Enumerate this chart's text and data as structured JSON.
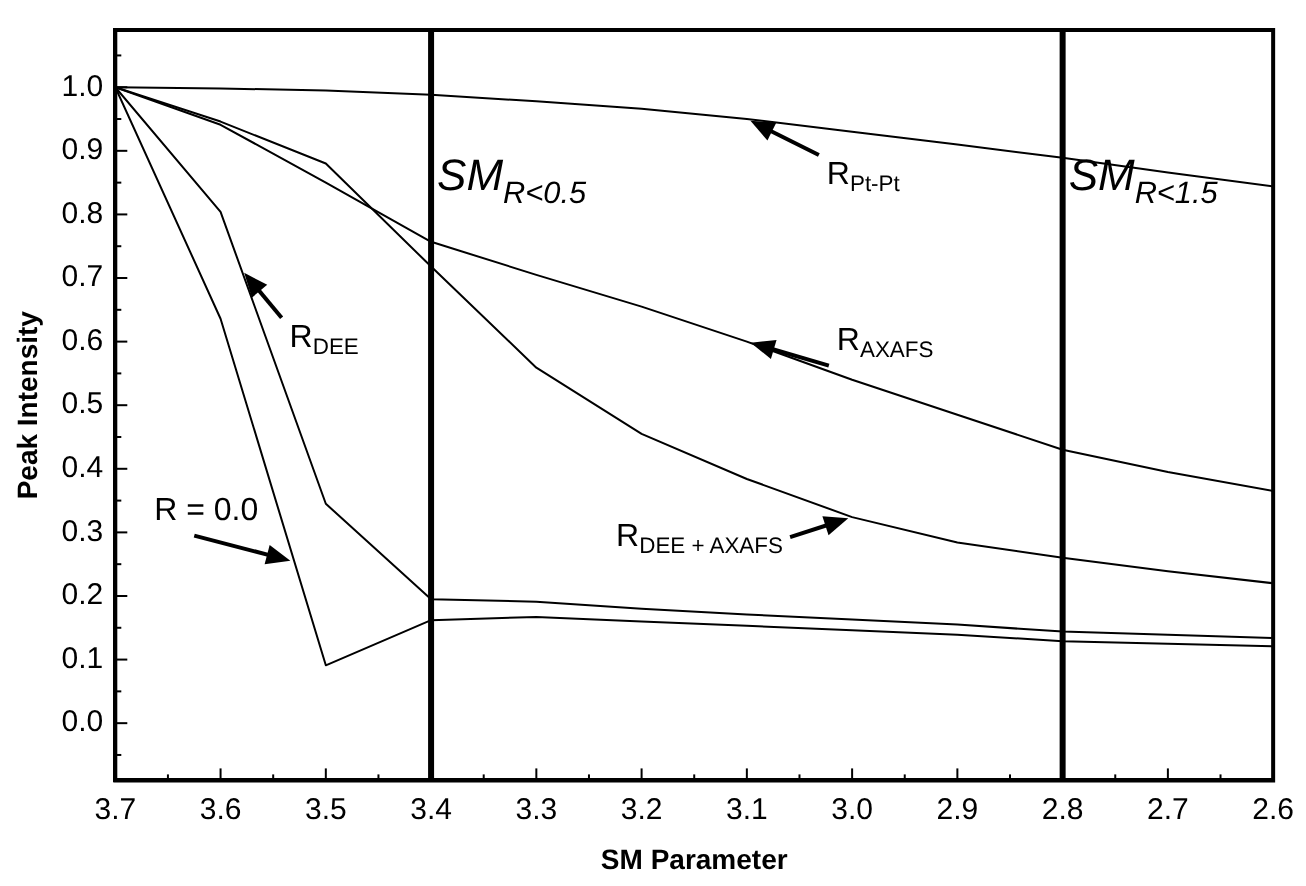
{
  "chart_data": {
    "type": "line",
    "xlabel": "SM Parameter",
    "ylabel": "Peak Intensity",
    "x": [
      3.7,
      3.6,
      3.5,
      3.4,
      3.3,
      3.2,
      3.1,
      3.0,
      2.9,
      2.8,
      2.7,
      2.6
    ],
    "series": [
      {
        "color": "#000000",
        "values": [
          1.0,
          0.636,
          0.091,
          0.162,
          0.167,
          0.16,
          0.153,
          0.146,
          0.139,
          0.129,
          0.125,
          0.121
        ]
      },
      {
        "color": "#000000",
        "values": [
          1.0,
          0.804,
          0.345,
          0.195,
          0.191,
          0.18,
          0.171,
          0.163,
          0.155,
          0.144,
          0.139,
          0.134
        ]
      },
      {
        "color": "#000000",
        "values": [
          1.0,
          0.946,
          0.88,
          0.718,
          0.559,
          0.455,
          0.384,
          0.324,
          0.284,
          0.26,
          0.239,
          0.22
        ]
      },
      {
        "color": "#000000",
        "values": [
          1.0,
          0.941,
          0.85,
          0.757,
          0.705,
          0.655,
          0.6,
          0.54,
          0.485,
          0.43,
          0.395,
          0.365
        ]
      },
      {
        "color": "#000000",
        "values": [
          1.0,
          0.998,
          0.995,
          0.988,
          0.978,
          0.966,
          0.95,
          0.93,
          0.91,
          0.889,
          0.866,
          0.844
        ]
      }
    ],
    "annotations": [
      {
        "text": "R = 0.0",
        "x": 3.53,
        "y": 0.254
      },
      {
        "text": "R$_{DEE}$",
        "x": 3.58,
        "y": 0.713
      },
      {
        "text": "R$_{DEE + AXAFS}$",
        "x": 3.0,
        "y": 0.324
      },
      {
        "text": "R$_{AXAFS}$",
        "x": 3.1,
        "y": 0.6
      },
      {
        "text": "R$_{Pt-Pt}$",
        "x": 3.1,
        "y": 0.95
      }
    ],
    "ref_lines": [
      {
        "axis": "x",
        "value": 3.4,
        "label": "SM$_{R<0.5}$"
      },
      {
        "axis": "x",
        "value": 2.8,
        "label": "SM$_{R<1.5}$"
      }
    ],
    "xlim": [
      3.7,
      2.6
    ],
    "xticks": [
      3.7,
      {
        "value": 3.65,
        "label": null
      },
      3.6,
      {
        "value": 3.55,
        "label": null
      },
      3.5,
      {
        "value": 3.45,
        "label": null
      },
      3.4,
      {
        "value": 3.35,
        "label": null
      },
      3.3,
      {
        "value": 3.25,
        "label": null
      },
      3.2,
      {
        "value": 3.15,
        "label": null
      },
      3.1,
      {
        "value": 3.05,
        "label": null
      },
      {
        "value": 3,
        "label": "3.0"
      },
      {
        "value": 2.95,
        "label": null
      },
      2.9,
      {
        "value": 2.85,
        "label": null
      },
      2.8,
      {
        "value": 2.75,
        "label": null
      },
      2.7,
      {
        "value": 2.65,
        "label": null
      },
      2.6
    ],
    "ylim": [
      -0.09,
      1.09
    ],
    "yticks": [
      {
        "value": -0.05,
        "label": null
      },
      {
        "value": 0,
        "label": "0.0"
      },
      {
        "value": 0.05,
        "label": null
      },
      0.1,
      {
        "value": 0.15,
        "label": null
      },
      0.2,
      {
        "value": 0.25,
        "label": null
      },
      0.3,
      {
        "value": 0.35,
        "label": null
      },
      0.4,
      {
        "value": 0.45,
        "label": null
      },
      0.5,
      {
        "value": 0.55,
        "label": null
      },
      0.6,
      {
        "value": 0.65,
        "label": null
      },
      0.7,
      {
        "value": 0.75,
        "label": null
      },
      0.8,
      {
        "value": 0.85,
        "label": null
      },
      0.9,
      {
        "value": 0.95,
        "label": null
      },
      {
        "value": 1,
        "label": "1.0"
      },
      {
        "value": 1.05,
        "label": null
      }
    ],
    "grid": false,
    "legend": false,
    "marker": "none",
    "line_style": "solid"
  }
}
